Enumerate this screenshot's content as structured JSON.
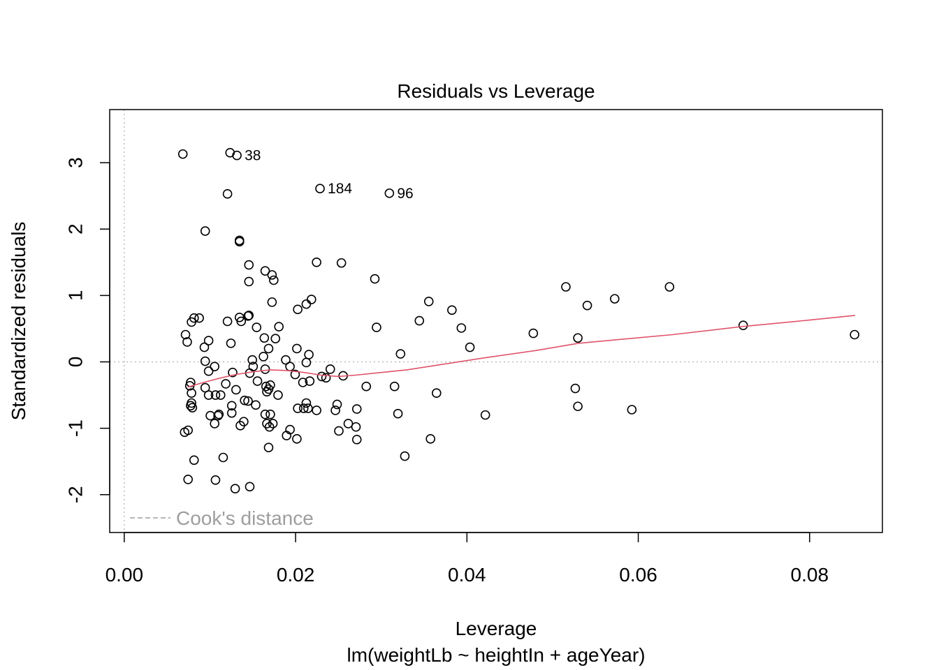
{
  "chart_data": {
    "type": "scatter",
    "title": "Residuals vs Leverage",
    "xlabel": "Leverage",
    "ylabel": "Standardized residuals",
    "subtitle": "lm(weightLb ~ heightIn + ageYear)",
    "xlim": [
      -0.0017,
      0.0885
    ],
    "ylim": [
      -2.57,
      3.8
    ],
    "x_ticks": [
      0.0,
      0.02,
      0.04,
      0.06,
      0.08
    ],
    "x_tick_labels": [
      "0.00",
      "0.02",
      "0.04",
      "0.06",
      "0.08"
    ],
    "y_ticks": [
      -2,
      -1,
      0,
      1,
      2,
      3
    ],
    "y_tick_labels": [
      "-2",
      "-1",
      "0",
      "1",
      "2",
      "3"
    ],
    "reference_lines": {
      "h": 0,
      "v": 0,
      "color": "#BEBEBE"
    },
    "legend": {
      "position": "bottom-left",
      "label": "Cook's distance",
      "color": "#9E9E9E"
    },
    "smooth_color": "#DF536B",
    "point_labels": [
      {
        "label": "38",
        "x": 0.01315,
        "y": 3.11
      },
      {
        "label": "184",
        "x": 0.02285,
        "y": 2.61
      },
      {
        "label": "96",
        "x": 0.03095,
        "y": 2.54
      }
    ],
    "smooth": [
      [
        0.0074,
        -0.38
      ],
      [
        0.009,
        -0.32
      ],
      [
        0.011,
        -0.25
      ],
      [
        0.013,
        -0.19
      ],
      [
        0.015,
        -0.15
      ],
      [
        0.017,
        -0.12
      ],
      [
        0.019,
        -0.13
      ],
      [
        0.021,
        -0.16
      ],
      [
        0.023,
        -0.2
      ],
      [
        0.025,
        -0.22
      ],
      [
        0.027,
        -0.2
      ],
      [
        0.03,
        -0.16
      ],
      [
        0.033,
        -0.12
      ],
      [
        0.037,
        -0.04
      ],
      [
        0.042,
        0.06
      ],
      [
        0.048,
        0.17
      ],
      [
        0.053,
        0.28
      ],
      [
        0.058,
        0.34
      ],
      [
        0.064,
        0.41
      ],
      [
        0.072,
        0.53
      ],
      [
        0.08,
        0.63
      ],
      [
        0.0853,
        0.7
      ]
    ],
    "points": [
      [
        0.00684,
        3.13
      ],
      [
        0.01235,
        3.15
      ],
      [
        0.01315,
        3.11
      ],
      [
        0.01205,
        2.53
      ],
      [
        0.02285,
        2.61
      ],
      [
        0.03095,
        2.54
      ],
      [
        0.00945,
        1.97
      ],
      [
        0.01345,
        1.83
      ],
      [
        0.01345,
        1.81
      ],
      [
        0.01455,
        1.46
      ],
      [
        0.01645,
        1.37
      ],
      [
        0.01725,
        1.31
      ],
      [
        0.01745,
        1.23
      ],
      [
        0.01455,
        1.21
      ],
      [
        0.02245,
        1.5
      ],
      [
        0.02535,
        1.49
      ],
      [
        0.02925,
        1.25
      ],
      [
        0.05155,
        1.13
      ],
      [
        0.06365,
        1.13
      ],
      [
        0.05725,
        0.95
      ],
      [
        0.05405,
        0.85
      ],
      [
        0.03555,
        0.91
      ],
      [
        0.03825,
        0.78
      ],
      [
        0.03935,
        0.51
      ],
      [
        0.04775,
        0.43
      ],
      [
        0.05295,
        0.36
      ],
      [
        0.04035,
        0.22
      ],
      [
        0.03445,
        0.62
      ],
      [
        0.02945,
        0.52
      ],
      [
        0.03225,
        0.12
      ],
      [
        0.07225,
        0.55
      ],
      [
        0.08525,
        0.41
      ],
      [
        0.01725,
        0.9
      ],
      [
        0.02025,
        0.79
      ],
      [
        0.02125,
        0.87
      ],
      [
        0.02185,
        0.94
      ],
      [
        0.01445,
        0.69
      ],
      [
        0.01455,
        0.7
      ],
      [
        0.01345,
        0.67
      ],
      [
        0.01365,
        0.61
      ],
      [
        0.01205,
        0.61
      ],
      [
        0.00785,
        0.6
      ],
      [
        0.00815,
        0.66
      ],
      [
        0.00875,
        0.66
      ],
      [
        0.00715,
        0.41
      ],
      [
        0.00735,
        0.3
      ],
      [
        0.00935,
        0.22
      ],
      [
        0.00985,
        0.32
      ],
      [
        0.01245,
        0.28
      ],
      [
        0.01545,
        0.52
      ],
      [
        0.01805,
        0.53
      ],
      [
        0.01765,
        0.35
      ],
      [
        0.01635,
        0.36
      ],
      [
        0.01685,
        0.2
      ],
      [
        0.01625,
        0.08
      ],
      [
        0.01495,
        0.03
      ],
      [
        0.01505,
        -0.07
      ],
      [
        0.00945,
        0.01
      ],
      [
        0.01055,
        -0.07
      ],
      [
        0.00985,
        -0.14
      ],
      [
        0.01265,
        -0.16
      ],
      [
        0.01465,
        -0.17
      ],
      [
        0.01645,
        -0.11
      ],
      [
        0.01885,
        0.03
      ],
      [
        0.01935,
        -0.07
      ],
      [
        0.02015,
        0.2
      ],
      [
        0.02155,
        0.11
      ],
      [
        0.02125,
        -0.01
      ],
      [
        0.02405,
        -0.11
      ],
      [
        0.02305,
        -0.22
      ],
      [
        0.02555,
        -0.21
      ],
      [
        0.02355,
        -0.24
      ],
      [
        0.01995,
        -0.19
      ],
      [
        0.02085,
        -0.31
      ],
      [
        0.02165,
        -0.29
      ],
      [
        0.02825,
        -0.37
      ],
      [
        0.03155,
        -0.37
      ],
      [
        0.03645,
        -0.47
      ],
      [
        0.01555,
        -0.29
      ],
      [
        0.01655,
        -0.37
      ],
      [
        0.01685,
        -0.41
      ],
      [
        0.01705,
        -0.35
      ],
      [
        0.01665,
        -0.45
      ],
      [
        0.01795,
        -0.5
      ],
      [
        0.01305,
        -0.42
      ],
      [
        0.01185,
        -0.33
      ],
      [
        0.00775,
        -0.31
      ],
      [
        0.00765,
        -0.36
      ],
      [
        0.00945,
        -0.39
      ],
      [
        0.00785,
        -0.47
      ],
      [
        0.00985,
        -0.5
      ],
      [
        0.01065,
        -0.5
      ],
      [
        0.01125,
        -0.5
      ],
      [
        0.01405,
        -0.58
      ],
      [
        0.01445,
        -0.59
      ],
      [
        0.01535,
        -0.65
      ],
      [
        0.01255,
        -0.66
      ],
      [
        0.00785,
        -0.62
      ],
      [
        0.00775,
        -0.66
      ],
      [
        0.00795,
        -0.69
      ],
      [
        0.01005,
        -0.81
      ],
      [
        0.01095,
        -0.81
      ],
      [
        0.01105,
        -0.79
      ],
      [
        0.01055,
        -0.93
      ],
      [
        0.01255,
        -0.77
      ],
      [
        0.01395,
        -0.9
      ],
      [
        0.01355,
        -0.96
      ],
      [
        0.01645,
        -0.79
      ],
      [
        0.01705,
        -0.79
      ],
      [
        0.01665,
        -0.93
      ],
      [
        0.01735,
        -0.93
      ],
      [
        0.01695,
        -0.98
      ],
      [
        0.02025,
        -0.7
      ],
      [
        0.02095,
        -0.7
      ],
      [
        0.02125,
        -0.62
      ],
      [
        0.02145,
        -0.7
      ],
      [
        0.02245,
        -0.73
      ],
      [
        0.02465,
        -0.73
      ],
      [
        0.02485,
        -0.64
      ],
      [
        0.02715,
        -0.71
      ],
      [
        0.02615,
        -0.93
      ],
      [
        0.02705,
        -0.98
      ],
      [
        0.02505,
        -1.04
      ],
      [
        0.01935,
        -1.02
      ],
      [
        0.01895,
        -1.11
      ],
      [
        0.02015,
        -1.16
      ],
      [
        0.02715,
        -1.17
      ],
      [
        0.03195,
        -0.78
      ],
      [
        0.03575,
        -1.16
      ],
      [
        0.03275,
        -1.42
      ],
      [
        0.04215,
        -0.8
      ],
      [
        0.05265,
        -0.4
      ],
      [
        0.05295,
        -0.67
      ],
      [
        0.05925,
        -0.72
      ],
      [
        0.00705,
        -1.06
      ],
      [
        0.00745,
        -1.03
      ],
      [
        0.01685,
        -1.29
      ],
      [
        0.00815,
        -1.48
      ],
      [
        0.01155,
        -1.44
      ],
      [
        0.00745,
        -1.77
      ],
      [
        0.01065,
        -1.78
      ],
      [
        0.01295,
        -1.91
      ],
      [
        0.01465,
        -1.88
      ]
    ]
  }
}
